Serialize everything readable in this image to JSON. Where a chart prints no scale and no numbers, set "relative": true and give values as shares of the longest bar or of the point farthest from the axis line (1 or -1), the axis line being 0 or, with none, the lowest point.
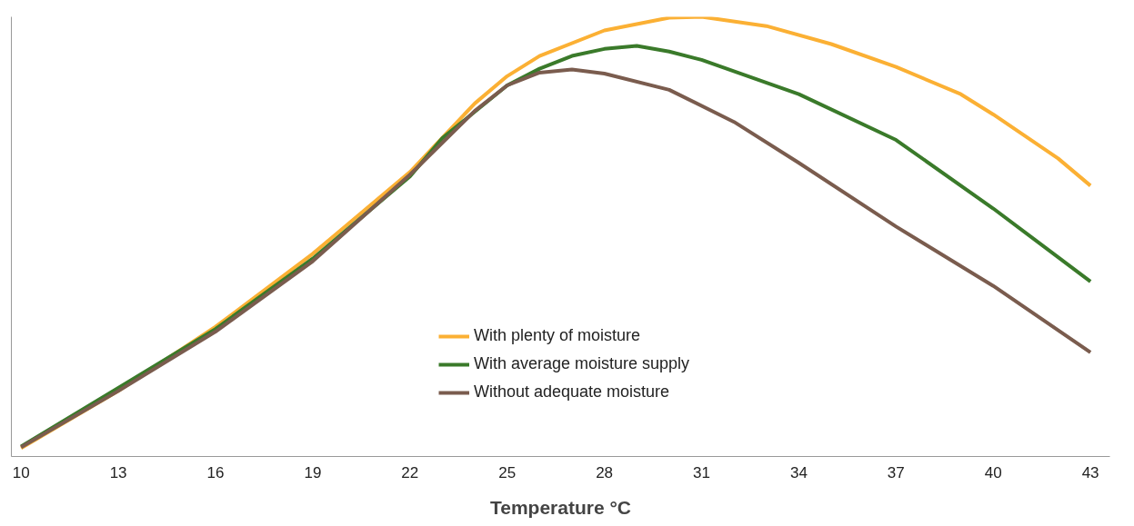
{
  "chart_data": {
    "type": "line",
    "relative": true,
    "xlabel": "Temperature °C",
    "xlim": [
      9.7,
      43.6
    ],
    "xticks": [
      10,
      13,
      16,
      19,
      22,
      25,
      28,
      31,
      34,
      37,
      40,
      43
    ],
    "grid": false,
    "legend": "bottom",
    "line_style": "solid",
    "marker": "none",
    "series": [
      {
        "name": "With plenty of moisture",
        "color": "#fbb034",
        "x": [
          10,
          13,
          16,
          19,
          22,
          24,
          25,
          26,
          28,
          30,
          31,
          33,
          35,
          37,
          39,
          40,
          42,
          43
        ],
        "values": [
          0.019,
          0.149,
          0.295,
          0.461,
          0.647,
          0.803,
          0.865,
          0.911,
          0.969,
          0.998,
          1,
          0.979,
          0.938,
          0.886,
          0.824,
          0.778,
          0.678,
          0.616
        ]
      },
      {
        "name": "With average moisture supply",
        "color": "#3a7a2a",
        "x": [
          10,
          13,
          16,
          19,
          22,
          23,
          25,
          26,
          27,
          28,
          29,
          30,
          31,
          34,
          37,
          40,
          43
        ],
        "values": [
          0.023,
          0.156,
          0.29,
          0.45,
          0.637,
          0.724,
          0.844,
          0.882,
          0.911,
          0.927,
          0.934,
          0.921,
          0.902,
          0.824,
          0.72,
          0.564,
          0.398
        ]
      },
      {
        "name": "Without adequate moisture",
        "color": "#7a5c4e",
        "x": [
          10,
          13,
          16,
          19,
          22,
          24,
          25,
          26,
          27,
          28,
          30,
          32,
          34,
          37,
          40,
          43
        ],
        "values": [
          0.021,
          0.149,
          0.284,
          0.444,
          0.641,
          0.786,
          0.844,
          0.873,
          0.88,
          0.871,
          0.834,
          0.761,
          0.668,
          0.523,
          0.388,
          0.237
        ]
      }
    ]
  }
}
